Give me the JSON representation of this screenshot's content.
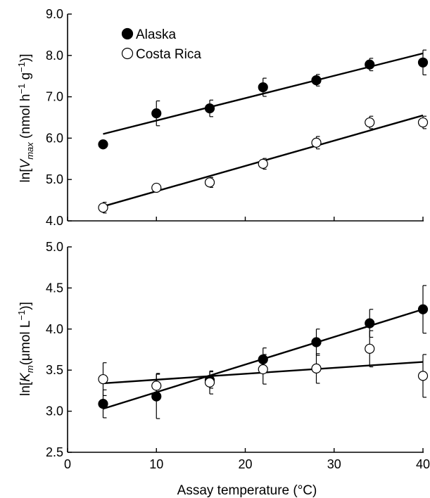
{
  "chart_data": [
    {
      "type": "scatter",
      "xlim": [
        0,
        40
      ],
      "ylim": [
        4.0,
        9.0
      ],
      "x_ticks": [
        "0",
        "10",
        "20",
        "30",
        "40"
      ],
      "y_ticks": [
        "4.0",
        "5.0",
        "6.0",
        "7.0",
        "8.0",
        "9.0"
      ],
      "ylabel_prefix": "ln[",
      "ylabel_var": "V",
      "ylabel_sub": "max",
      "ylabel_unit_open": " (nmol h",
      "ylabel_exp1": "−1",
      "ylabel_unit_mid": " g",
      "ylabel_exp2": "−1",
      "ylabel_suffix": ")]",
      "legend_position": "top-left",
      "grid": false,
      "series": [
        {
          "name": "Alaska",
          "marker": "filled-circle",
          "color": "#000000",
          "x": [
            4,
            10,
            16,
            22,
            28,
            34,
            40
          ],
          "y": [
            5.85,
            6.6,
            6.72,
            7.23,
            7.4,
            7.78,
            7.83
          ],
          "err": [
            0.0,
            0.3,
            0.2,
            0.22,
            0.14,
            0.15,
            0.3
          ],
          "fit": [
            [
              4,
              6.1
            ],
            [
              40,
              8.05
            ]
          ]
        },
        {
          "name": "Costa Rica",
          "marker": "open-circle",
          "color": "#000000",
          "x": [
            4,
            10,
            16,
            22,
            28,
            34,
            40
          ],
          "y": [
            4.32,
            4.8,
            4.93,
            5.38,
            5.89,
            6.38,
            6.38
          ],
          "err": [
            0.13,
            0.0,
            0.12,
            0.13,
            0.15,
            0.15,
            0.15
          ],
          "fit": [
            [
              4,
              4.35
            ],
            [
              40,
              6.55
            ]
          ]
        }
      ]
    },
    {
      "type": "scatter",
      "xlim": [
        0,
        40
      ],
      "ylim": [
        2.5,
        5.0
      ],
      "x_ticks": [
        "0",
        "10",
        "20",
        "30",
        "40"
      ],
      "y_ticks": [
        "2.5",
        "3.0",
        "3.5",
        "4.0",
        "4.5",
        "5.0"
      ],
      "ylabel_prefix": "ln[",
      "ylabel_var": "K",
      "ylabel_sub": "m",
      "ylabel_unit_open": "(μmol L",
      "ylabel_exp1": "−1",
      "ylabel_suffix": ")]",
      "xlabel": "Assay temperature (°C)",
      "grid": false,
      "series": [
        {
          "name": "Alaska",
          "marker": "filled-circle",
          "color": "#000000",
          "x": [
            4,
            10,
            16,
            22,
            28,
            34,
            40
          ],
          "y": [
            3.09,
            3.18,
            3.38,
            3.63,
            3.84,
            4.07,
            4.24
          ],
          "err": [
            0.17,
            0.27,
            0.1,
            0.14,
            0.16,
            0.17,
            0.29
          ],
          "fit": [
            [
              4,
              3.03
            ],
            [
              40,
              4.24
            ]
          ]
        },
        {
          "name": "Costa Rica",
          "marker": "open-circle",
          "color": "#000000",
          "x": [
            4,
            10,
            16,
            22,
            28,
            34,
            40
          ],
          "y": [
            3.39,
            3.31,
            3.35,
            3.51,
            3.52,
            3.76,
            3.43
          ],
          "err": [
            0.2,
            0.15,
            0.14,
            0.18,
            0.18,
            0.22,
            0.26
          ],
          "fit": [
            [
              4,
              3.34
            ],
            [
              40,
              3.6
            ]
          ]
        }
      ]
    }
  ]
}
